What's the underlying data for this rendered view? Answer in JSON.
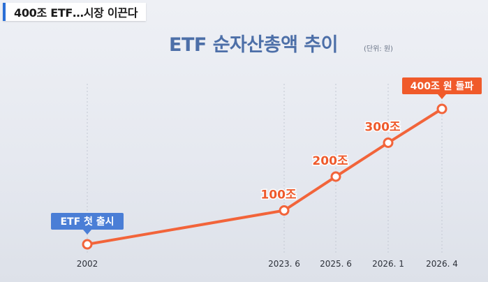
{
  "headline": "400조 ETF…시장 이끈다",
  "chart_data": {
    "type": "line",
    "title": "ETF 순자산총액 추이",
    "unit": "(단위: 원)",
    "x_labels": [
      "2002",
      "2023. 6",
      "2025. 6",
      "2026. 1",
      "2026. 4"
    ],
    "values": [
      0,
      100,
      200,
      300,
      400
    ],
    "value_unit": "조",
    "data_labels": [
      "",
      "100조",
      "200조",
      "300조",
      ""
    ],
    "callouts": [
      {
        "point": 0,
        "text": "ETF 첫 출시"
      },
      {
        "point": 4,
        "text": "400조 원 돌파"
      }
    ],
    "colors": {
      "line": "#f2643a",
      "callout_blue": "#4a7ed6",
      "callout_orange": "#f05a2a"
    }
  }
}
